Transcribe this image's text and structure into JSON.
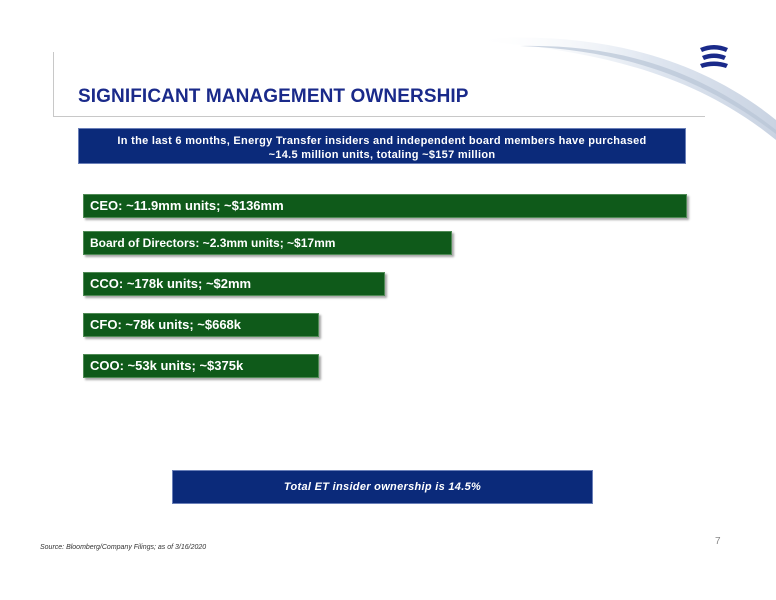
{
  "slide": {
    "title": "SIGNIFICANT MANAGEMENT OWNERSHIP",
    "banner_line1": "In the last 6 months, Energy Transfer insiders and independent board members have purchased",
    "banner_line2": "~14.5 million units, totaling ~$157 million",
    "bars": [
      {
        "label": "CEO: ~11.9mm units; ~$136mm",
        "value_mm": 136
      },
      {
        "label": "Board of Directors: ~2.3mm units; ~$17mm",
        "value_mm": 17
      },
      {
        "label": "CCO: ~178k units; ~$2mm",
        "value_mm": 2
      },
      {
        "label": "CFO: ~78k units; ~$668k",
        "value_mm": 0.668
      },
      {
        "label": "COO: ~53k units; ~$375k",
        "value_mm": 0.375
      }
    ],
    "total": "Total ET insider ownership is 14.5%",
    "source": "Source: Bloomberg/Company Filings; as of 3/16/2020",
    "page_number": "7",
    "colors": {
      "title": "#1a2a8a",
      "banner": "#0b2a7a",
      "bar": "#0f5a1a"
    }
  }
}
